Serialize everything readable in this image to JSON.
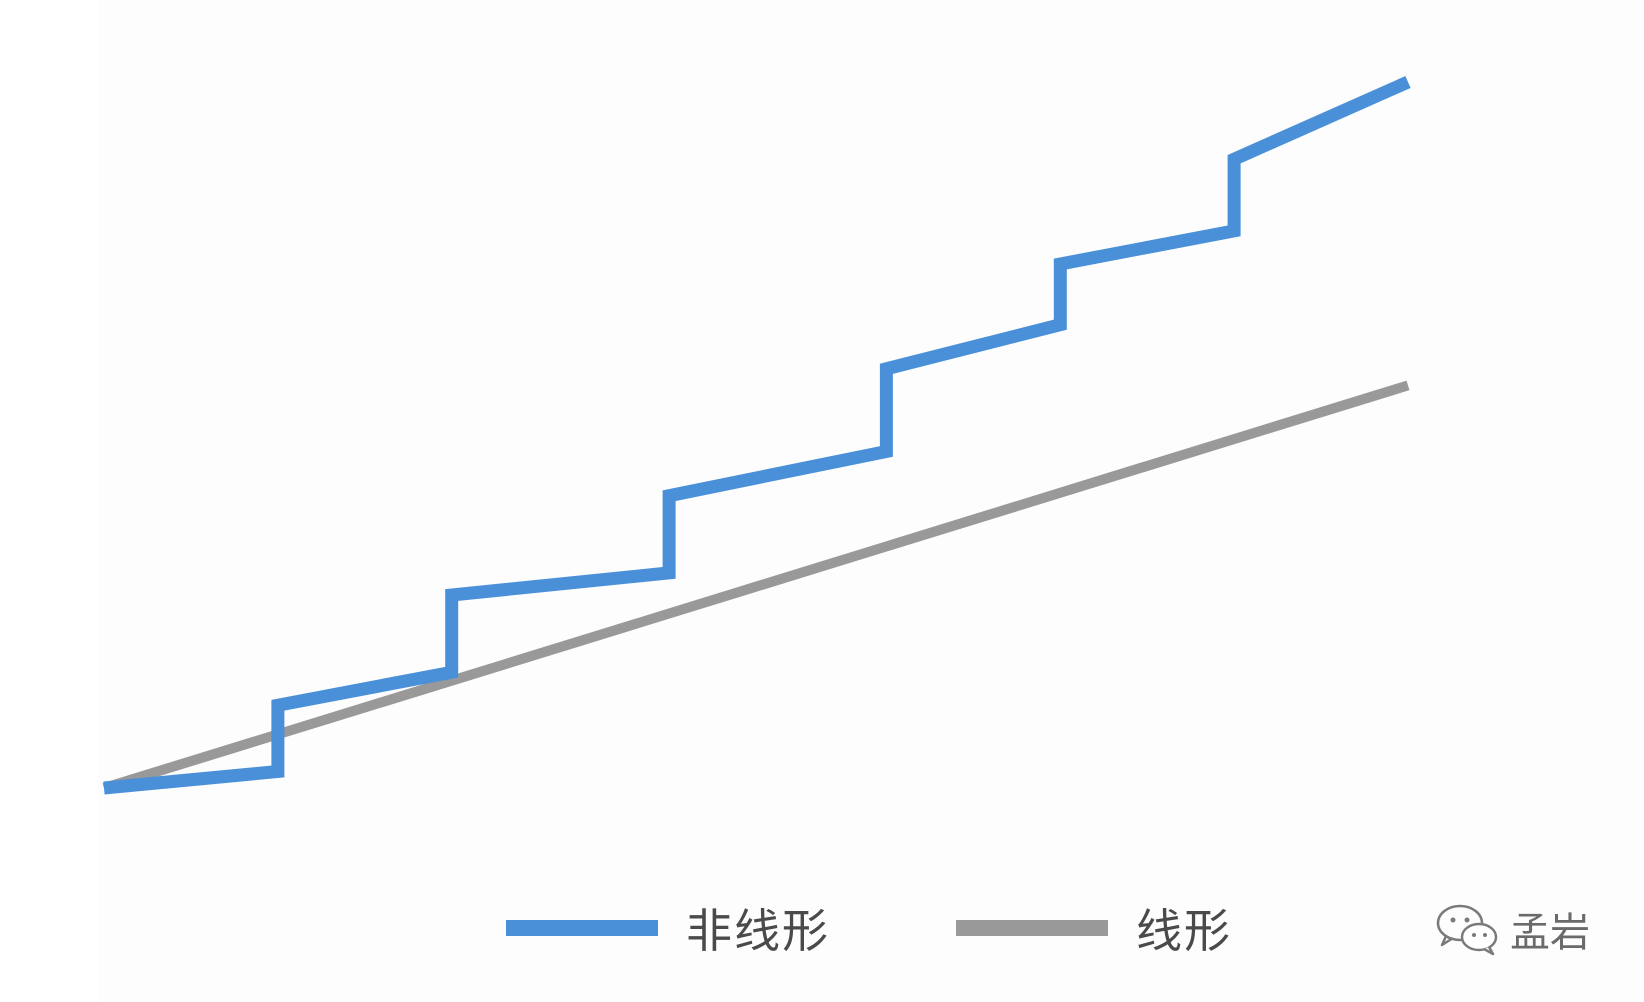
{
  "chart_data": {
    "type": "line",
    "title": "",
    "xlabel": "",
    "ylabel": "",
    "grid": false,
    "axes_visible": false,
    "legend_position": "bottom",
    "xlim": [
      0,
      14
    ],
    "ylim": [
      0,
      14
    ],
    "series": [
      {
        "name": "非线形",
        "color": "#4a90d9",
        "x": [
          0,
          2,
          2,
          4,
          4,
          6.5,
          6.5,
          9,
          9,
          11,
          11,
          13,
          13,
          15
        ],
        "y": [
          0,
          0.3,
          1.5,
          2.1,
          3.5,
          3.9,
          5.3,
          6.1,
          7.6,
          8.4,
          9.5,
          10.1,
          11.4,
          12.8
        ]
      },
      {
        "name": "线形",
        "color": "#999999",
        "x": [
          0,
          15
        ],
        "y": [
          0,
          7.3
        ]
      }
    ]
  },
  "legend": [
    {
      "label": "非线形",
      "color": "#4a90d9"
    },
    {
      "label": "线形",
      "color": "#999999"
    }
  ],
  "watermark": {
    "icon": "wechat-icon",
    "text": "孟岩"
  }
}
